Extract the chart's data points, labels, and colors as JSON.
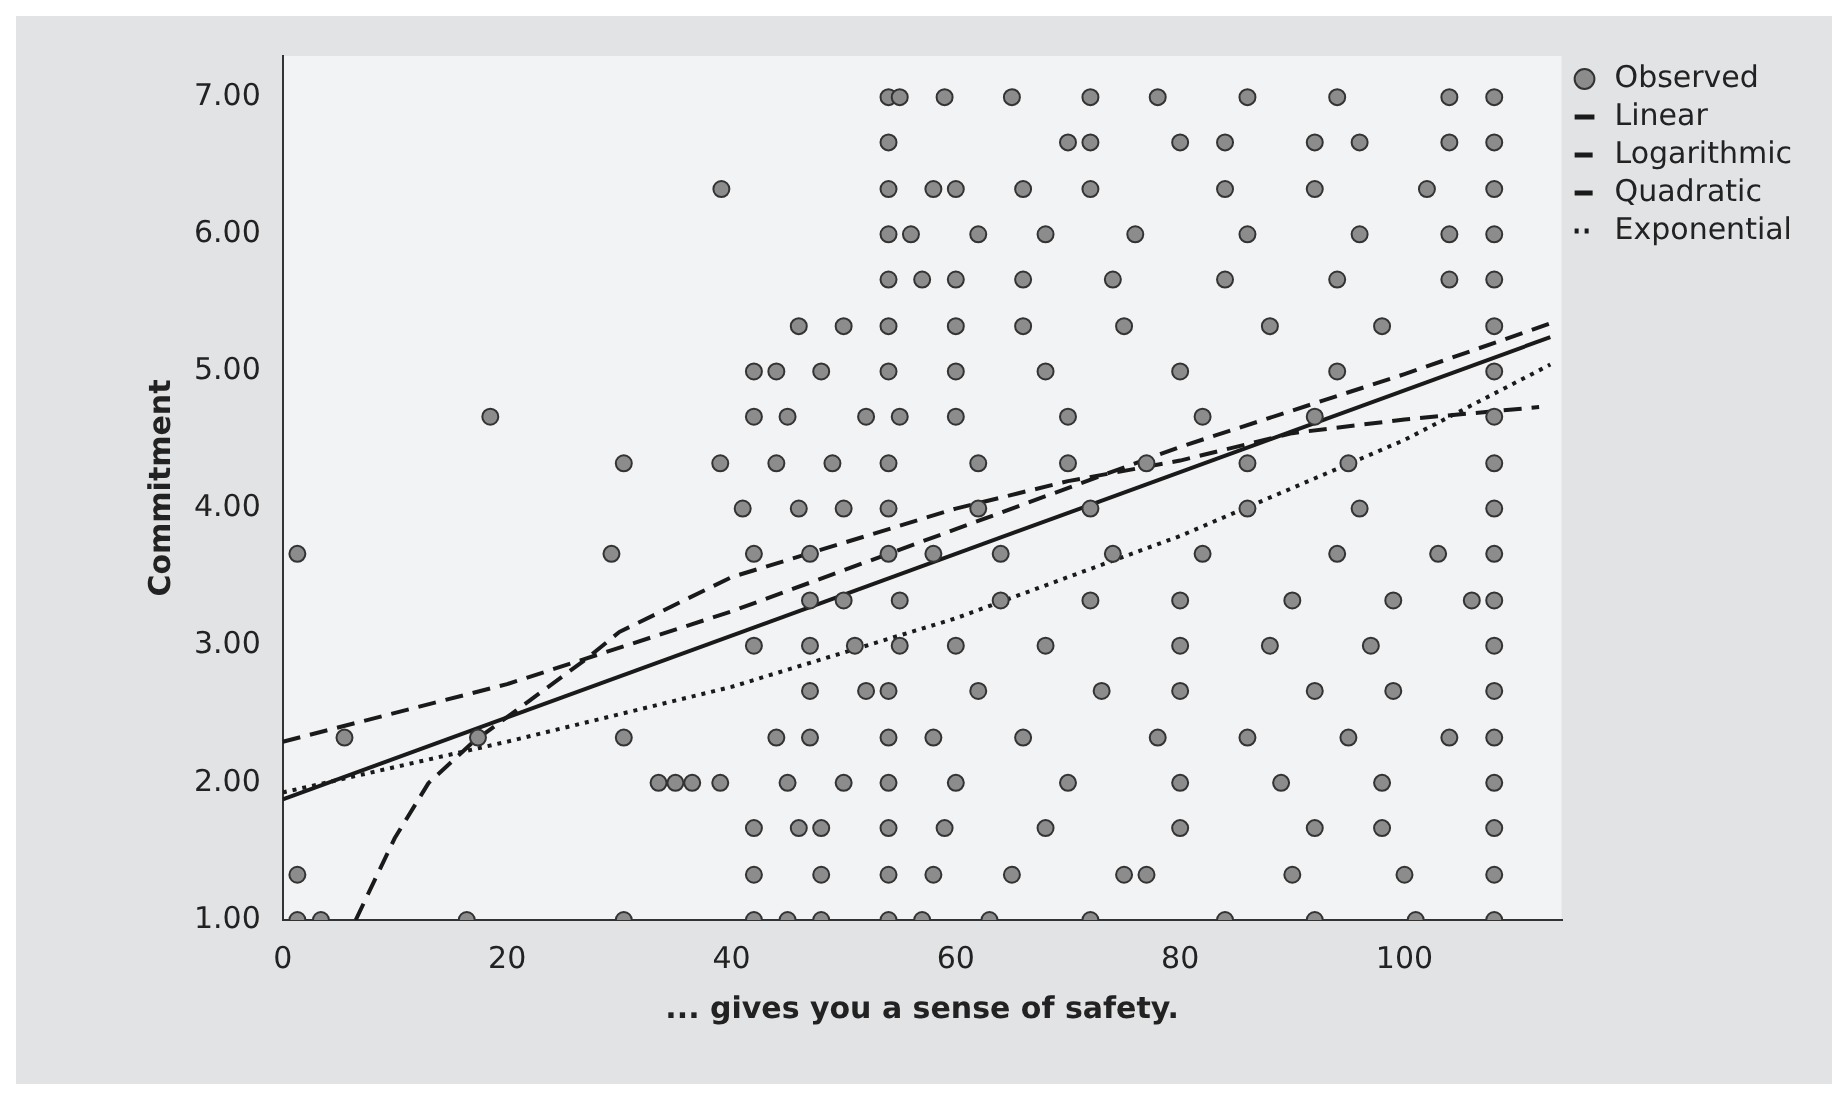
{
  "chart_data": {
    "type": "scatter",
    "xlabel": "... gives you a sense of safety.",
    "ylabel": "Commitment",
    "xlim": [
      0,
      114
    ],
    "xticks": [
      0,
      20,
      40,
      60,
      80,
      100
    ],
    "ylim": [
      1,
      7.3
    ],
    "yticks": [
      {
        "value": 1,
        "label": "1.00"
      },
      {
        "value": 2,
        "label": "2.00"
      },
      {
        "value": 3,
        "label": "3.00"
      },
      {
        "value": 4,
        "label": "4.00"
      },
      {
        "value": 5,
        "label": "5.00"
      },
      {
        "value": 6,
        "label": "6.00"
      },
      {
        "value": 7,
        "label": "7.00"
      }
    ],
    "legend": "top right",
    "grid": false,
    "series": [
      {
        "name": "Observed",
        "type": "scatter",
        "marker": "circle",
        "color": "#8c8c8c",
        "x": [
          1.3,
          3.4,
          16.4,
          30.4,
          1.3,
          5.5,
          17.4,
          30.4,
          33.5,
          35,
          36.5,
          29.3,
          1.3,
          30.4,
          39,
          18.5,
          39.1,
          42,
          45,
          48,
          54,
          57,
          63,
          72,
          84,
          92,
          101,
          108,
          42,
          48,
          54,
          58,
          65,
          75,
          77,
          90,
          100,
          108,
          42,
          46,
          48,
          54,
          59,
          68,
          80,
          92,
          98,
          108,
          39,
          45,
          50,
          54,
          60,
          70,
          80,
          89,
          98,
          108,
          44,
          47,
          54,
          58,
          66,
          78,
          86,
          95,
          104,
          108,
          47,
          52,
          54,
          62,
          73,
          80,
          92,
          99,
          108,
          42,
          47,
          51,
          55,
          60,
          68,
          80,
          88,
          97,
          108,
          47,
          50,
          55,
          64,
          72,
          80,
          90,
          99,
          106,
          108,
          42,
          47,
          54,
          58,
          64,
          74,
          82,
          94,
          103,
          108,
          41,
          46,
          50,
          54,
          62,
          72,
          86,
          96,
          108,
          44,
          49,
          54,
          62,
          70,
          77,
          86,
          95,
          108,
          42,
          45,
          52,
          55,
          60,
          70,
          82,
          92,
          108,
          42,
          44,
          48,
          54,
          60,
          68,
          80,
          94,
          108,
          46,
          50,
          54,
          60,
          66,
          75,
          88,
          98,
          108,
          54,
          57,
          60,
          66,
          74,
          84,
          94,
          104,
          108,
          54,
          56,
          62,
          68,
          76,
          86,
          96,
          104,
          108,
          54,
          58,
          60,
          66,
          72,
          84,
          92,
          102,
          108,
          54,
          70,
          72,
          80,
          84,
          92,
          96,
          104,
          108,
          54,
          55,
          59,
          65,
          72,
          78,
          86,
          94,
          104,
          108
        ],
        "values": [
          1,
          1,
          1,
          1,
          1.33,
          2.33,
          2.33,
          2.33,
          2,
          2,
          2,
          3.67,
          3.67,
          4.33,
          4.33,
          4.67,
          6.33,
          1,
          1,
          1,
          1,
          1,
          1,
          1,
          1,
          1,
          1,
          1,
          1.33,
          1.33,
          1.33,
          1.33,
          1.33,
          1.33,
          1.33,
          1.33,
          1.33,
          1.33,
          1.67,
          1.67,
          1.67,
          1.67,
          1.67,
          1.67,
          1.67,
          1.67,
          1.67,
          1.67,
          2,
          2,
          2,
          2,
          2,
          2,
          2,
          2,
          2,
          2,
          2.33,
          2.33,
          2.33,
          2.33,
          2.33,
          2.33,
          2.33,
          2.33,
          2.33,
          2.33,
          2.67,
          2.67,
          2.67,
          2.67,
          2.67,
          2.67,
          2.67,
          2.67,
          2.67,
          3,
          3,
          3,
          3,
          3,
          3,
          3,
          3,
          3,
          3,
          3.33,
          3.33,
          3.33,
          3.33,
          3.33,
          3.33,
          3.33,
          3.33,
          3.33,
          3.33,
          3.67,
          3.67,
          3.67,
          3.67,
          3.67,
          3.67,
          3.67,
          3.67,
          3.67,
          3.67,
          4,
          4,
          4,
          4,
          4,
          4,
          4,
          4,
          4,
          4.33,
          4.33,
          4.33,
          4.33,
          4.33,
          4.33,
          4.33,
          4.33,
          4.33,
          4.67,
          4.67,
          4.67,
          4.67,
          4.67,
          4.67,
          4.67,
          4.67,
          4.67,
          5,
          5,
          5,
          5,
          5,
          5,
          5,
          5,
          5,
          5.33,
          5.33,
          5.33,
          5.33,
          5.33,
          5.33,
          5.33,
          5.33,
          5.33,
          5.67,
          5.67,
          5.67,
          5.67,
          5.67,
          5.67,
          5.67,
          5.67,
          5.67,
          6,
          6,
          6,
          6,
          6,
          6,
          6,
          6,
          6,
          6.33,
          6.33,
          6.33,
          6.33,
          6.33,
          6.33,
          6.33,
          6.33,
          6.33,
          6.67,
          6.67,
          6.67,
          6.67,
          6.67,
          6.67,
          6.67,
          6.67,
          6.67,
          7,
          7,
          7,
          7,
          7,
          7,
          7,
          7,
          7,
          7
        ]
      },
      {
        "name": "Linear",
        "type": "line",
        "marker": "none",
        "line_style": "solid",
        "color": "#1a1a1a",
        "x": [
          0,
          113
        ],
        "values": [
          1.88,
          5.25
        ]
      },
      {
        "name": "Logarithmic",
        "type": "line",
        "marker": "none",
        "line_style": "dashed",
        "color": "#1a1a1a",
        "x": [
          6.5,
          10,
          13,
          17,
          22,
          27,
          30,
          40,
          50,
          60,
          70,
          80,
          90,
          100,
          112
        ],
        "values": [
          1,
          1.6,
          2,
          2.3,
          2.6,
          2.9,
          3.1,
          3.5,
          3.75,
          4,
          4.2,
          4.35,
          4.55,
          4.65,
          4.74
        ]
      },
      {
        "name": "Quadratic",
        "type": "line",
        "marker": "none",
        "line_style": "dashed",
        "color": "#1a1a1a",
        "x": [
          0,
          20,
          40,
          60,
          80,
          100,
          113
        ],
        "values": [
          2.3,
          2.72,
          3.25,
          3.85,
          4.45,
          4.98,
          5.35
        ]
      },
      {
        "name": "Exponential",
        "type": "line",
        "marker": "none",
        "line_style": "dotted",
        "color": "#1a1a1a",
        "x": [
          0,
          20,
          40,
          60,
          80,
          100,
          113
        ],
        "values": [
          1.93,
          2.3,
          2.7,
          3.2,
          3.8,
          4.5,
          5.05
        ]
      }
    ]
  }
}
